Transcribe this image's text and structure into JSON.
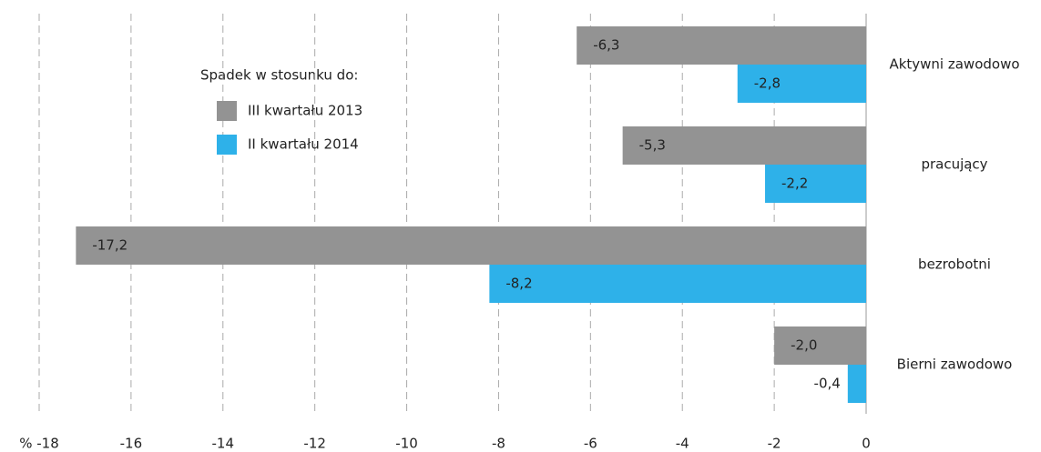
{
  "chart_data": {
    "type": "barh",
    "categories": [
      "Aktywni zawodowo",
      "pracujący",
      "bezrobotni",
      "Bierni zawodowo"
    ],
    "legend_title": "Spadek w stosunku do:",
    "series": [
      {
        "name": "III kwartału 2013",
        "color": "#939393",
        "values": [
          -6.3,
          -5.3,
          -17.2,
          -2.0
        ],
        "value_labels": [
          "-6,3",
          "-5,3",
          "-17,2",
          "-2,0"
        ]
      },
      {
        "name": "II kwartału 2014",
        "color": "#2eb1e9",
        "values": [
          -2.8,
          -2.2,
          -8.2,
          -0.4
        ],
        "value_labels": [
          "-2,8",
          "-2,2",
          "-8,2",
          "-0,4"
        ]
      }
    ],
    "xlim": [
      -18,
      0
    ],
    "xticks": [
      {
        "value": -18,
        "label": "% -18"
      },
      -16,
      -14,
      -12,
      -10,
      -8,
      -6,
      -4,
      -2,
      0
    ],
    "grid": true
  }
}
